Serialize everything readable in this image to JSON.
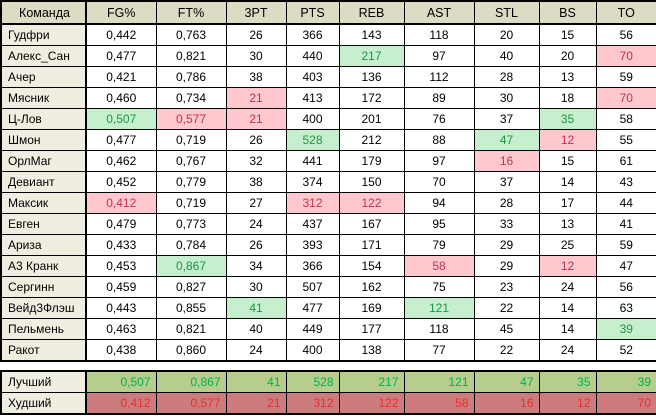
{
  "header": {
    "columns": [
      "Команда",
      "FG%",
      "FT%",
      "3PT",
      "PTS",
      "REB",
      "AST",
      "STL",
      "BS",
      "TO"
    ]
  },
  "rows": [
    {
      "name": "Гудфри",
      "values": [
        "0,442",
        "0,763",
        "26",
        "366",
        "143",
        "118",
        "20",
        "15",
        "56"
      ],
      "highlights": [
        "",
        "",
        "",
        "",
        "",
        "",
        "",
        "",
        ""
      ]
    },
    {
      "name": "Алекс_Сан",
      "values": [
        "0,477",
        "0,821",
        "30",
        "440",
        "217",
        "97",
        "40",
        "20",
        "70"
      ],
      "highlights": [
        "",
        "",
        "",
        "",
        "good",
        "",
        "",
        "",
        "bad"
      ]
    },
    {
      "name": "Ачер",
      "values": [
        "0,421",
        "0,786",
        "38",
        "403",
        "136",
        "112",
        "28",
        "13",
        "59"
      ],
      "highlights": [
        "",
        "",
        "",
        "",
        "",
        "",
        "",
        "",
        ""
      ]
    },
    {
      "name": "Мясник",
      "values": [
        "0,460",
        "0,734",
        "21",
        "413",
        "172",
        "89",
        "30",
        "18",
        "70"
      ],
      "highlights": [
        "",
        "",
        "bad",
        "",
        "",
        "",
        "",
        "",
        "bad"
      ]
    },
    {
      "name": "Ц-Лов",
      "values": [
        "0,507",
        "0,577",
        "21",
        "400",
        "201",
        "76",
        "37",
        "35",
        "58"
      ],
      "highlights": [
        "good",
        "bad",
        "bad",
        "",
        "",
        "",
        "",
        "good",
        ""
      ]
    },
    {
      "name": "Шмон",
      "values": [
        "0,477",
        "0,719",
        "26",
        "528",
        "212",
        "88",
        "47",
        "12",
        "55"
      ],
      "highlights": [
        "",
        "",
        "",
        "good",
        "",
        "",
        "good",
        "bad",
        ""
      ]
    },
    {
      "name": "ОрлМаг",
      "values": [
        "0,462",
        "0,767",
        "32",
        "441",
        "179",
        "97",
        "16",
        "15",
        "61"
      ],
      "highlights": [
        "",
        "",
        "",
        "",
        "",
        "",
        "bad",
        "",
        ""
      ]
    },
    {
      "name": "Девиант",
      "values": [
        "0,452",
        "0,779",
        "38",
        "374",
        "150",
        "70",
        "37",
        "14",
        "43"
      ],
      "highlights": [
        "",
        "",
        "",
        "",
        "",
        "",
        "",
        "",
        ""
      ]
    },
    {
      "name": "Максик",
      "values": [
        "0,412",
        "0,719",
        "27",
        "312",
        "122",
        "94",
        "28",
        "17",
        "44"
      ],
      "highlights": [
        "bad",
        "",
        "",
        "bad",
        "bad",
        "",
        "",
        "",
        ""
      ]
    },
    {
      "name": "Евген",
      "values": [
        "0,479",
        "0,773",
        "24",
        "437",
        "167",
        "95",
        "33",
        "13",
        "41"
      ],
      "highlights": [
        "",
        "",
        "",
        "",
        "",
        "",
        "",
        "",
        ""
      ]
    },
    {
      "name": "Ариза",
      "values": [
        "0,433",
        "0,784",
        "26",
        "393",
        "171",
        "79",
        "29",
        "25",
        "59"
      ],
      "highlights": [
        "",
        "",
        "",
        "",
        "",
        "",
        "",
        "",
        ""
      ]
    },
    {
      "name": "А3 Кранк",
      "values": [
        "0,453",
        "0,867",
        "34",
        "366",
        "154",
        "58",
        "29",
        "12",
        "47"
      ],
      "highlights": [
        "",
        "good",
        "",
        "",
        "",
        "bad",
        "",
        "bad",
        ""
      ]
    },
    {
      "name": "Сергинн",
      "values": [
        "0,459",
        "0,827",
        "30",
        "507",
        "162",
        "75",
        "23",
        "24",
        "56"
      ],
      "highlights": [
        "",
        "",
        "",
        "",
        "",
        "",
        "",
        "",
        ""
      ]
    },
    {
      "name": "Вейд3Флэш",
      "values": [
        "0,443",
        "0,855",
        "41",
        "477",
        "169",
        "121",
        "22",
        "14",
        "63"
      ],
      "highlights": [
        "",
        "",
        "good",
        "",
        "",
        "good",
        "",
        "",
        ""
      ]
    },
    {
      "name": "Пельмень",
      "values": [
        "0,463",
        "0,821",
        "40",
        "449",
        "177",
        "118",
        "45",
        "14",
        "39"
      ],
      "highlights": [
        "",
        "",
        "",
        "",
        "",
        "",
        "",
        "",
        "good"
      ]
    },
    {
      "name": "Ракот",
      "values": [
        "0,438",
        "0,860",
        "24",
        "400",
        "138",
        "77",
        "22",
        "24",
        "52"
      ],
      "highlights": [
        "",
        "",
        "",
        "",
        "",
        "",
        "",
        "",
        ""
      ]
    }
  ],
  "summary": [
    {
      "name": "Лучший",
      "type": "best",
      "values": [
        "0,507",
        "0,867",
        "41",
        "528",
        "217",
        "121",
        "47",
        "35",
        "39"
      ]
    },
    {
      "name": "Худший",
      "type": "worst",
      "values": [
        "0,412",
        "0,577",
        "21",
        "312",
        "122",
        "58",
        "16",
        "12",
        "70"
      ]
    }
  ],
  "colors": {
    "grid": "#000000",
    "header_bg": "#DDDBC4",
    "name_bg": "#EFEEE0",
    "good_bg": "#C6EFCE",
    "good_text": "#1E9641",
    "bad_bg": "#FFC7CE",
    "bad_text": "#C2334D",
    "best_bg": "#B7CD8C",
    "best_text": "#00B050",
    "worst_bg": "#CC7C7C",
    "worst_text": "#F02C2C"
  }
}
